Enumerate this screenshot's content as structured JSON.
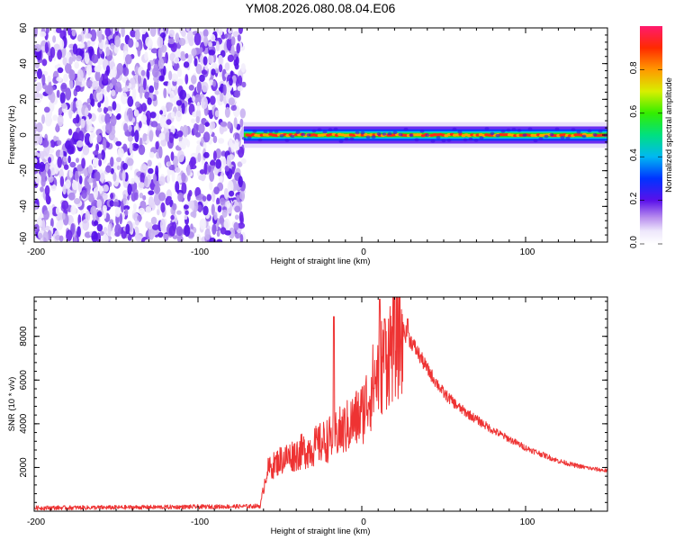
{
  "title": "YM08.2026.080.08.04.E06",
  "chart_data": [
    {
      "type": "heatmap",
      "title": "YM08.2026.080.08.04.E06",
      "xlabel": "Height of straight line (km)",
      "ylabel": "Frequency (Hz)",
      "xlim": [
        -200,
        150
      ],
      "ylim": [
        -60,
        60
      ],
      "xticks": [
        -200,
        -100,
        0,
        100
      ],
      "yticks": [
        60,
        40,
        20,
        0,
        -20,
        -40,
        -60
      ],
      "xtick_labels": [
        "-200",
        "-100",
        "0",
        "100"
      ],
      "ytick_labels": [
        "60",
        "40",
        "20",
        "0",
        "-20",
        "-40",
        "-60"
      ],
      "noise_region_x": [
        -200,
        -72
      ],
      "signal_band": {
        "x_start": -72,
        "x_end": 150,
        "freq_center": 0,
        "half_width_hz": 3
      },
      "colorbar": {
        "label": "Normalized spectral amplitude",
        "range": [
          0,
          1
        ],
        "ticks": [
          0.0,
          0.2,
          0.4,
          0.6,
          0.8
        ],
        "tick_labels": [
          "0.0",
          "0.2",
          "0.4",
          "0.6",
          "0.8"
        ]
      }
    },
    {
      "type": "line",
      "xlabel": "Height of straight line (km)",
      "ylabel": "SNR (10 * v/v)",
      "xlim": [
        -200,
        150
      ],
      "ylim": [
        0,
        9800
      ],
      "xticks": [
        -200,
        -100,
        0,
        100
      ],
      "yticks": [
        2000,
        4000,
        6000,
        8000
      ],
      "xtick_labels": [
        "-200",
        "-100",
        "0",
        "100"
      ],
      "ytick_labels": [
        "2000",
        "4000",
        "6000",
        "8000"
      ],
      "color": "#ee3333",
      "series": [
        {
          "name": "SNR",
          "x": [
            -200,
            -150,
            -100,
            -70,
            -62,
            -58,
            -50,
            -40,
            -30,
            -20,
            -10,
            0,
            10,
            20,
            25,
            30,
            40,
            50,
            60,
            70,
            80,
            90,
            100,
            110,
            120,
            130,
            140,
            150
          ],
          "y": [
            150,
            170,
            200,
            220,
            240,
            1900,
            2400,
            2700,
            3000,
            3400,
            3900,
            4600,
            6600,
            8100,
            8300,
            7800,
            6500,
            5400,
            4700,
            4200,
            3700,
            3300,
            2900,
            2600,
            2300,
            2100,
            1950,
            1850
          ]
        }
      ],
      "spikes": [
        {
          "x": -17,
          "y": 8900
        },
        {
          "x": 11,
          "y": 9700
        },
        {
          "x": 14,
          "y": 8800
        },
        {
          "x": 28,
          "y": 8800
        }
      ]
    }
  ]
}
